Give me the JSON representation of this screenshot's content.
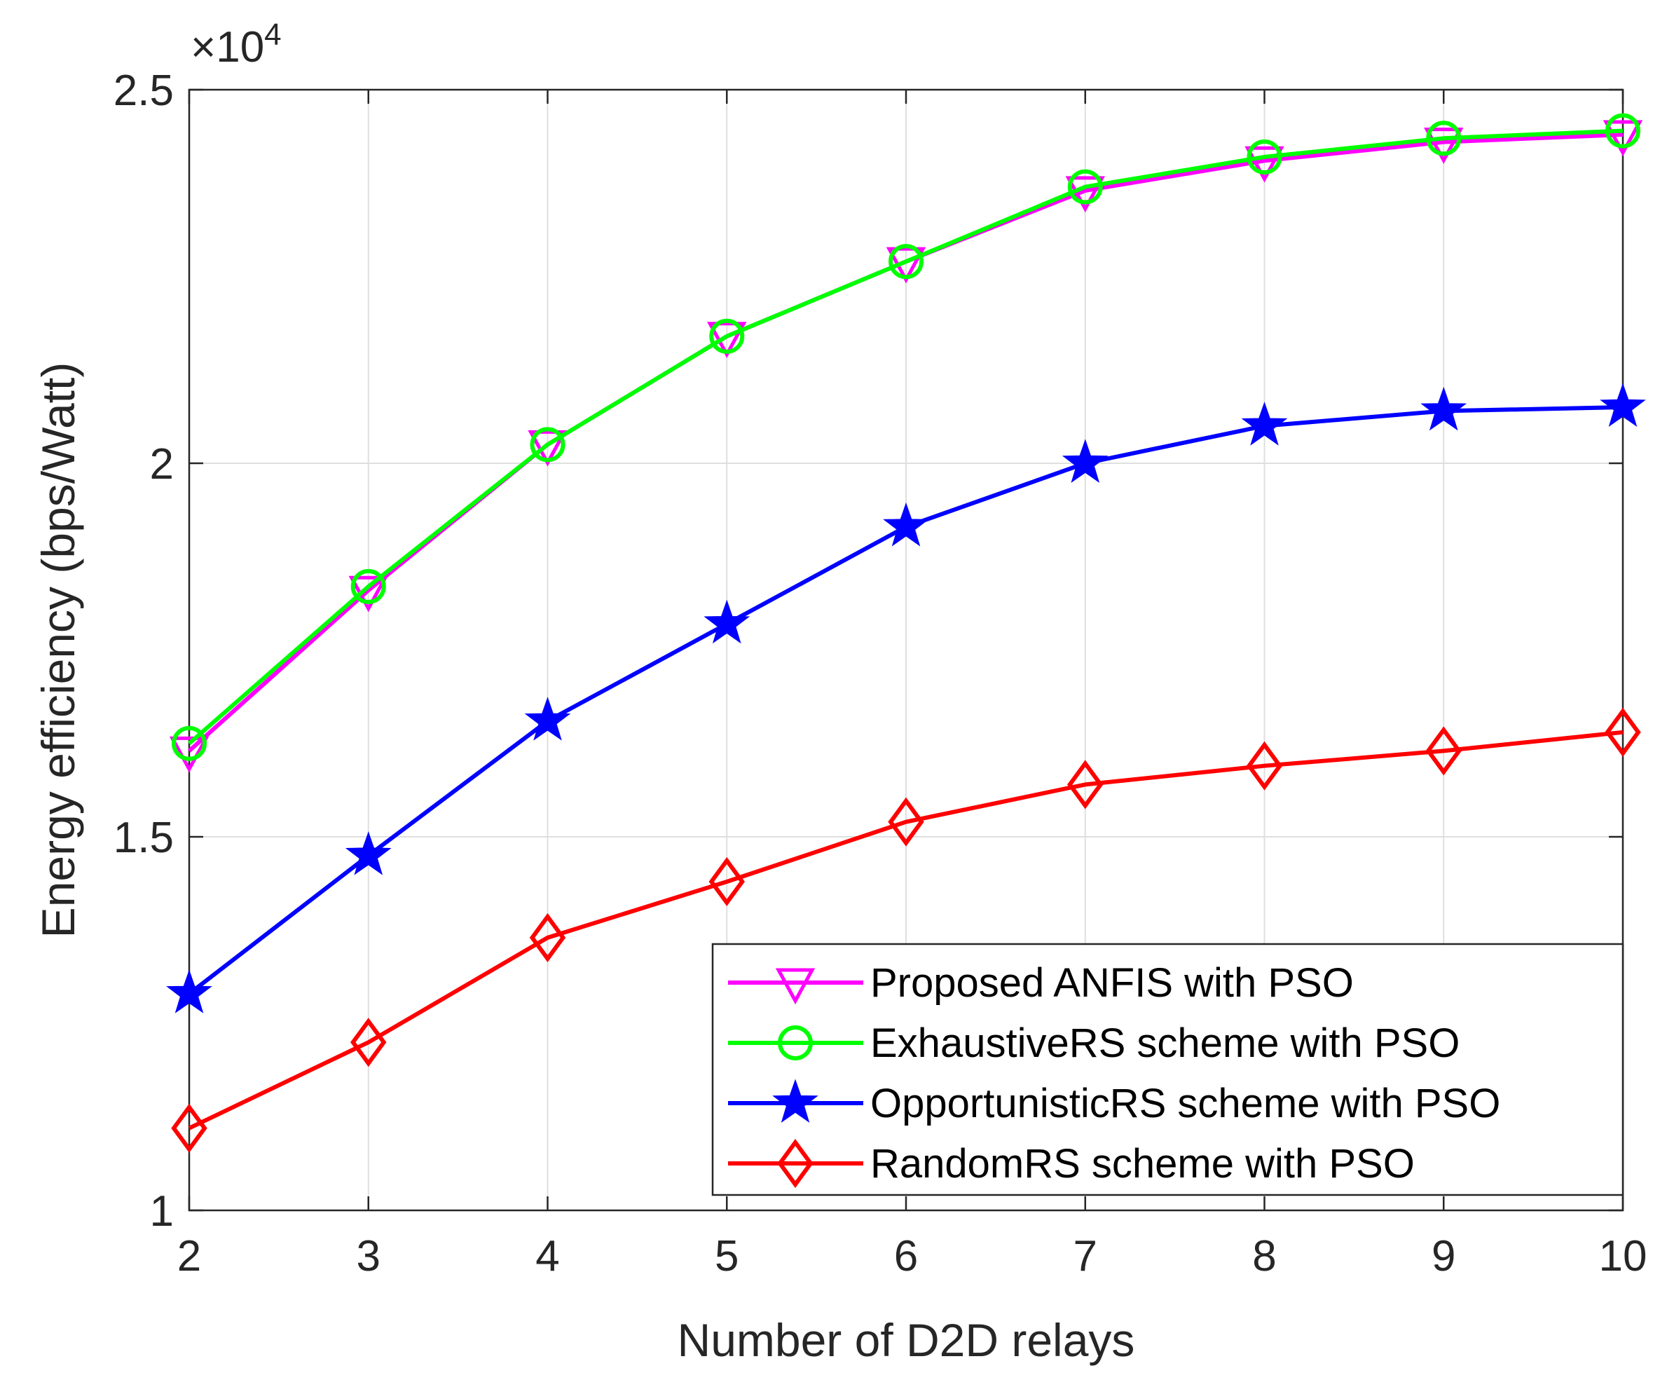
{
  "chart_data": {
    "type": "line",
    "xlabel": "Number of D2D relays",
    "ylabel": "Energy efficiency (bps/Watt)",
    "x": [
      2,
      3,
      4,
      5,
      6,
      7,
      8,
      9,
      10
    ],
    "xlim": [
      2,
      10
    ],
    "ylim": [
      10000,
      25000
    ],
    "x_ticks": [
      "2",
      "3",
      "4",
      "5",
      "6",
      "7",
      "8",
      "9",
      "10"
    ],
    "y_ticks": [
      {
        "value": 10000,
        "label": "1"
      },
      {
        "value": 15000,
        "label": "1.5"
      },
      {
        "value": 20000,
        "label": "2"
      },
      {
        "value": 25000,
        "label": "2.5"
      }
    ],
    "y_exponent": {
      "base": "×10",
      "power": "4"
    },
    "grid": true,
    "legend_position": "bottom-right",
    "series": [
      {
        "name": "Proposed ANFIS with PSO",
        "color": "#ff00ff",
        "marker": "triangle-down",
        "values": [
          16150,
          18300,
          20250,
          21700,
          22700,
          23650,
          24050,
          24300,
          24400
        ]
      },
      {
        "name": "ExhaustiveRS scheme with PSO",
        "color": "#00ff00",
        "marker": "circle",
        "values": [
          16250,
          18350,
          20250,
          21700,
          22700,
          23700,
          24100,
          24350,
          24450
        ]
      },
      {
        "name": "OpportunisticRS scheme with PSO",
        "color": "#0000ff",
        "marker": "star",
        "values": [
          12900,
          14750,
          16550,
          17850,
          19150,
          20000,
          20500,
          20700,
          20750
        ]
      },
      {
        "name": "RandomRS scheme with PSO",
        "color": "#ff0000",
        "marker": "diamond",
        "values": [
          11100,
          12250,
          13650,
          14400,
          15200,
          15700,
          15950,
          16150,
          16400
        ]
      }
    ]
  }
}
